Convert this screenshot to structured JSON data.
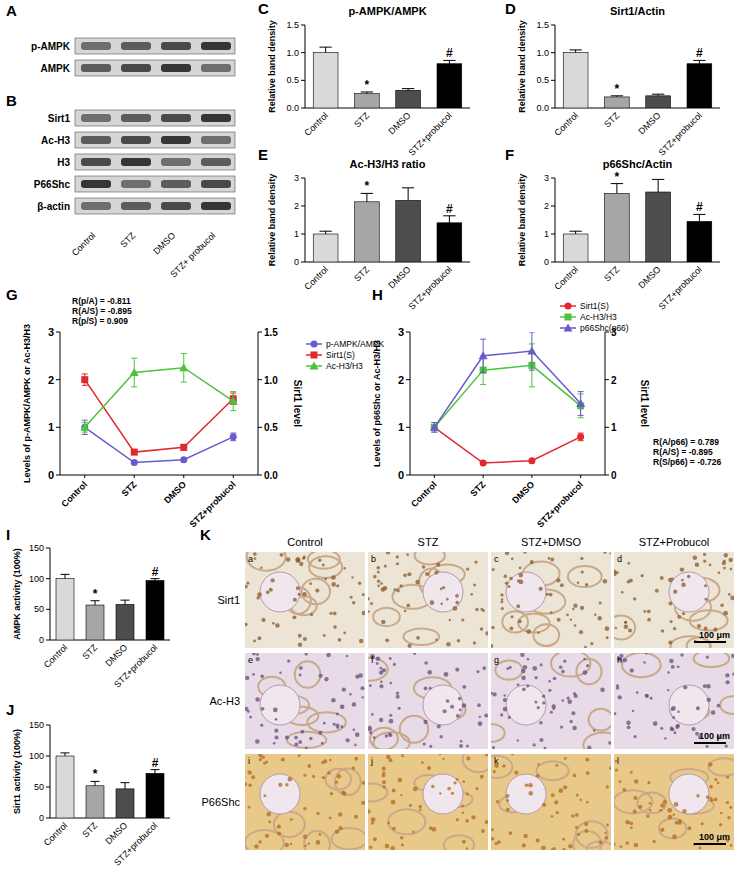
{
  "panel_labels": [
    "A",
    "B",
    "C",
    "D",
    "E",
    "F",
    "G",
    "H",
    "I",
    "J",
    "K"
  ],
  "blots": {
    "A": {
      "rows": [
        "p-AMPK",
        "AMPK"
      ]
    },
    "B": {
      "rows": [
        "Sirt1",
        "Ac-H3",
        "H3",
        "P66Shc",
        "β-actin"
      ],
      "lanes": [
        "Control",
        "STZ",
        "DMSO",
        "STZ+ probucol"
      ]
    }
  },
  "chart_data": [
    {
      "type": "bar",
      "title": "p-AMPK/AMPK",
      "y_label": "Relative band density",
      "categories": [
        "Control",
        "STZ",
        "DMSO",
        "STZ+probucol"
      ],
      "values": [
        1.0,
        0.26,
        0.32,
        0.8
      ],
      "errors": [
        0.1,
        0.03,
        0.03,
        0.06
      ],
      "colors": [
        "#d9d9d9",
        "#a6a6a6",
        "#4d4d4d",
        "#000000"
      ],
      "annotations": [
        null,
        "*",
        null,
        "#"
      ],
      "ylim": [
        0,
        1.5
      ],
      "yticks": [
        {
          "value": 0,
          "label": "0.0"
        },
        {
          "value": 0.5,
          "label": "0.5"
        },
        {
          "value": 1,
          "label": "1.0"
        },
        {
          "value": 1.5,
          "label": "1.5"
        }
      ]
    },
    {
      "type": "bar",
      "title": "Sirt1/Actin",
      "y_label": "Relative band density",
      "categories": [
        "Control",
        "STZ",
        "DMSO",
        "STZ+probucol"
      ],
      "values": [
        1.0,
        0.2,
        0.22,
        0.8
      ],
      "errors": [
        0.05,
        0.02,
        0.03,
        0.06
      ],
      "colors": [
        "#d9d9d9",
        "#a6a6a6",
        "#4d4d4d",
        "#000000"
      ],
      "annotations": [
        null,
        "*",
        null,
        "#"
      ],
      "ylim": [
        0,
        1.5
      ],
      "yticks": [
        {
          "value": 0,
          "label": "0.0"
        },
        {
          "value": 0.5,
          "label": "0.5"
        },
        {
          "value": 1,
          "label": "1.0"
        },
        {
          "value": 1.5,
          "label": "1.5"
        }
      ]
    },
    {
      "type": "bar",
      "title": "Ac-H3/H3 ratio",
      "y_label": "Relative band density",
      "categories": [
        "Control",
        "STZ",
        "DMSO",
        "STZ+probucol"
      ],
      "values": [
        1.0,
        2.15,
        2.2,
        1.4
      ],
      "errors": [
        0.1,
        0.3,
        0.45,
        0.25
      ],
      "colors": [
        "#d9d9d9",
        "#a6a6a6",
        "#4d4d4d",
        "#000000"
      ],
      "annotations": [
        null,
        "*",
        null,
        "#"
      ],
      "ylim": [
        0,
        3
      ],
      "yticks": [
        0,
        1,
        2,
        3
      ]
    },
    {
      "type": "bar",
      "title": "p66Shc/Actin",
      "y_label": "Relative band density",
      "categories": [
        "Control",
        "STZ",
        "DMSO",
        "STZ+probucol"
      ],
      "values": [
        1.0,
        2.45,
        2.5,
        1.45
      ],
      "errors": [
        0.1,
        0.35,
        0.45,
        0.25
      ],
      "colors": [
        "#d9d9d9",
        "#a6a6a6",
        "#4d4d4d",
        "#000000"
      ],
      "annotations": [
        null,
        "*",
        null,
        "#"
      ],
      "ylim": [
        0,
        3
      ],
      "yticks": [
        0,
        1,
        2,
        3
      ]
    },
    {
      "type": "line",
      "y_label": "Levels of p-AMPK/AMPK or Ac-H3/H3",
      "y2_label": "Sirt1 level",
      "categories": [
        "Control",
        "STZ",
        "DMSO",
        "STZ+probucol"
      ],
      "series": [
        {
          "name": "p-AMPK/AMPK",
          "color": "#6a5acd",
          "marker": "circle",
          "values": [
            1.0,
            0.26,
            0.32,
            0.8
          ],
          "errors": [
            0.15,
            0.03,
            0.04,
            0.08
          ]
        },
        {
          "name": "Sirt1(S)",
          "color": "#e0282e",
          "marker": "square",
          "axis": "y2",
          "values": [
            1.0,
            0.24,
            0.29,
            0.8
          ],
          "errors": [
            0.06,
            0.02,
            0.03,
            0.06
          ]
        },
        {
          "name": "Ac-H3/H3",
          "color": "#4cc43c",
          "marker": "triangle",
          "values": [
            1.0,
            2.15,
            2.25,
            1.55
          ],
          "errors": [
            0.1,
            0.3,
            0.3,
            0.2
          ]
        }
      ],
      "ylim": [
        0,
        3
      ],
      "yticks": [
        0,
        1,
        2,
        3
      ],
      "y2lim": [
        0,
        1.5
      ],
      "y2ticks": [
        {
          "value": 0,
          "label": "0.0"
        },
        {
          "value": 0.5,
          "label": "0.5"
        },
        {
          "value": 1,
          "label": "1.0"
        },
        {
          "value": 1.5,
          "label": "1.5"
        }
      ],
      "annotations": [
        "R(p/A) = -0.811",
        "R(A/S) = -0.895",
        "R(p/S) =  0.909"
      ],
      "legend": "right"
    },
    {
      "type": "line",
      "y_label": "Levels of p66Shc or Ac-H3/H3",
      "y2_label": "Sirt1 level",
      "categories": [
        "Control",
        "STZ",
        "DMSO",
        "STZ+probucol"
      ],
      "series": [
        {
          "name": "Sirt1(S)",
          "color": "#e0282e",
          "marker": "circle",
          "axis": "y2",
          "values": [
            1.0,
            0.25,
            0.3,
            0.8
          ],
          "errors": [
            0.05,
            0.02,
            0.02,
            0.08
          ]
        },
        {
          "name": "Ac-H3/H3",
          "color": "#4cc43c",
          "marker": "square",
          "values": [
            1.0,
            2.2,
            2.3,
            1.45
          ],
          "errors": [
            0.1,
            0.3,
            0.45,
            0.25
          ]
        },
        {
          "name": "p66Shc(p66)",
          "color": "#6a5acd",
          "marker": "triangle",
          "values": [
            1.0,
            2.5,
            2.6,
            1.5
          ],
          "errors": [
            0.1,
            0.35,
            0.4,
            0.25
          ]
        }
      ],
      "ylim": [
        0,
        3
      ],
      "yticks": [
        0,
        1,
        2,
        3
      ],
      "y2lim": [
        0,
        3
      ],
      "y2ticks": [
        0,
        1,
        2,
        3
      ],
      "annotations": [
        "R(A/p66) = 0.789",
        "R(A/S) = -0.895",
        "R(S/p66) = -0.726"
      ],
      "legend": "top"
    },
    {
      "type": "bar",
      "y_label": "AMPK activity (100%)",
      "categories": [
        "Control",
        "STZ",
        "DMSO",
        "STZ+probucol"
      ],
      "values": [
        100,
        57,
        58,
        97
      ],
      "errors": [
        7,
        7,
        7,
        3
      ],
      "colors": [
        "#d9d9d9",
        "#a6a6a6",
        "#4d4d4d",
        "#000000"
      ],
      "annotations": [
        null,
        "*",
        null,
        "#"
      ],
      "ylim": [
        0,
        150
      ],
      "yticks": [
        0,
        50,
        100,
        150
      ]
    },
    {
      "type": "bar",
      "y_label": "Sirt1 activity (100%)",
      "categories": [
        "Control",
        "STZ",
        "DMSO",
        "STZ+probucol"
      ],
      "values": [
        100,
        52,
        47,
        72
      ],
      "errors": [
        5,
        7,
        10,
        6
      ],
      "colors": [
        "#d9d9d9",
        "#a6a6a6",
        "#4d4d4d",
        "#000000"
      ],
      "annotations": [
        null,
        "*",
        null,
        "#"
      ],
      "ylim": [
        0,
        150
      ],
      "yticks": [
        0,
        50,
        100,
        150
      ]
    }
  ],
  "histology": {
    "columns": [
      "Control",
      "STZ",
      "STZ+DMSO",
      "STZ+Probucol"
    ],
    "rows": [
      "Sirt1",
      "Ac-H3",
      "P66Shc"
    ],
    "panels": [
      "a",
      "b",
      "c",
      "d",
      "e",
      "f",
      "g",
      "h",
      "i",
      "j",
      "k",
      "l"
    ],
    "scale_bar": "100 μm"
  }
}
